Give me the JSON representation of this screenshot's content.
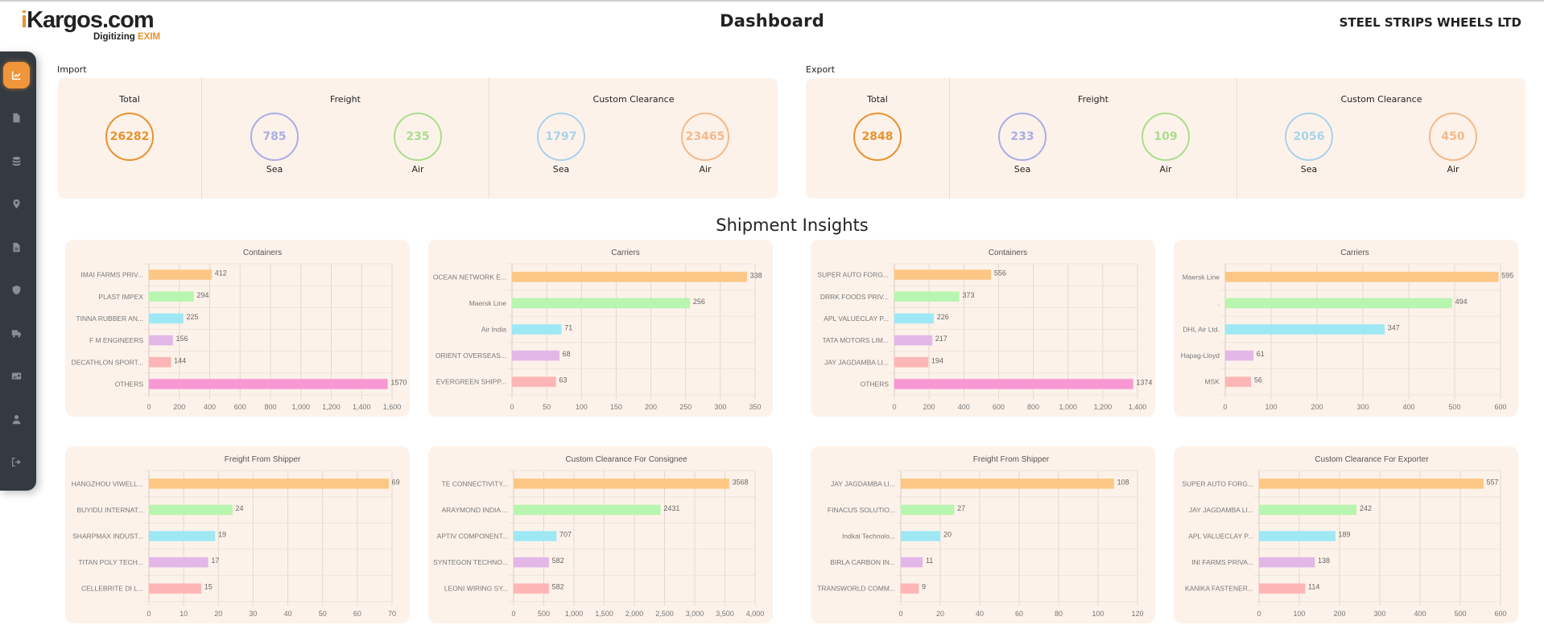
{
  "header": {
    "logo_i": "i",
    "logo_k": "K",
    "logo_rest": "argos.com",
    "logo_tagline_a": "Digitizing ",
    "logo_tagline_b": "EXIM",
    "title": "Dashboard",
    "company": "STEEL STRIPS WHEELS LTD"
  },
  "sidebar": {
    "items": [
      {
        "name": "dashboard",
        "icon": "chart-line-icon",
        "active": true
      },
      {
        "name": "documents",
        "icon": "file-icon",
        "active": false
      },
      {
        "name": "database",
        "icon": "database-icon",
        "active": false
      },
      {
        "name": "tracking",
        "icon": "map-pin-icon",
        "active": false
      },
      {
        "name": "reports",
        "icon": "file-lines-icon",
        "active": false
      },
      {
        "name": "security",
        "icon": "shield-icon",
        "active": false
      },
      {
        "name": "transport",
        "icon": "truck-icon",
        "active": false
      },
      {
        "name": "billing",
        "icon": "id-card-icon",
        "active": false
      },
      {
        "name": "profile",
        "icon": "user-icon",
        "active": false
      },
      {
        "name": "logout",
        "icon": "logout-icon",
        "active": false
      }
    ]
  },
  "colors": {
    "accent": "#f0953a",
    "total": "#e8922f",
    "freight_sea": "#a9aee6",
    "freight_air": "#a9dd8f",
    "cc_sea": "#a8d3ea",
    "cc_air": "#f2b98c",
    "card_bg": "#fdf2ea",
    "bars": [
      "#fcc784",
      "#b8f5b0",
      "#9ee8f5",
      "#e2b7e8",
      "#fdb5b5",
      "#f797d3"
    ]
  },
  "import": {
    "label": "Import",
    "total_title": "Total",
    "total": "26282",
    "freight_title": "Freight",
    "freight_sea": "785",
    "freight_air": "235",
    "cc_title": "Custom Clearance",
    "cc_sea": "1797",
    "cc_air": "23465",
    "sea_label": "Sea",
    "air_label": "Air"
  },
  "export": {
    "label": "Export",
    "total_title": "Total",
    "total": "2848",
    "freight_title": "Freight",
    "freight_sea": "233",
    "freight_air": "109",
    "cc_title": "Custom Clearance",
    "cc_sea": "2056",
    "cc_air": "450",
    "sea_label": "Sea",
    "air_label": "Air"
  },
  "insights_title": "Shipment Insights",
  "chart_data": [
    {
      "type": "bar",
      "orientation": "horizontal",
      "title": "Containers",
      "group": "import",
      "categories": [
        "IMAI FARMS PRIV...",
        "PLAST IMPEX",
        "TINNA RUBBER AN...",
        "F M ENGINEERS",
        "DECATHLON SPORT...",
        "OTHERS"
      ],
      "values": [
        412,
        294,
        225,
        156,
        144,
        1570
      ],
      "xlim": [
        0,
        1600
      ],
      "xticks": [
        0,
        200,
        400,
        600,
        800,
        1000,
        1200,
        1400,
        1600
      ],
      "xticklabels": [
        "0",
        "200",
        "400",
        "600",
        "800",
        "1,000",
        "1,200",
        "1,400",
        "1,600"
      ],
      "grid": true,
      "xlabel": "",
      "ylabel": ""
    },
    {
      "type": "bar",
      "orientation": "horizontal",
      "title": "Carriers",
      "group": "import",
      "categories": [
        "OCEAN NETWORK E...",
        "Maersk Line",
        "Air India",
        "ORIENT OVERSEAS...",
        "EVERGREEN SHIPP..."
      ],
      "values": [
        338,
        256,
        71,
        68,
        63
      ],
      "xlim": [
        0,
        350
      ],
      "xticks": [
        0,
        50,
        100,
        150,
        200,
        250,
        300,
        350
      ],
      "xticklabels": [
        "0",
        "50",
        "100",
        "150",
        "200",
        "250",
        "300",
        "350"
      ],
      "grid": true,
      "xlabel": "",
      "ylabel": ""
    },
    {
      "type": "bar",
      "orientation": "horizontal",
      "title": "Containers",
      "group": "export",
      "categories": [
        "SUPER AUTO FORG...",
        "DRRK FOODS PRIV...",
        "APL VALUECLAY P...",
        "TATA MOTORS LIM...",
        "JAY JAGDAMBA LI...",
        "OTHERS"
      ],
      "values": [
        556,
        373,
        226,
        217,
        194,
        1374
      ],
      "xlim": [
        0,
        1400
      ],
      "xticks": [
        0,
        200,
        400,
        600,
        800,
        1000,
        1200,
        1400
      ],
      "xticklabels": [
        "0",
        "200",
        "400",
        "600",
        "800",
        "1,000",
        "1,200",
        "1,400"
      ],
      "grid": true,
      "xlabel": "",
      "ylabel": ""
    },
    {
      "type": "bar",
      "orientation": "horizontal",
      "title": "Carriers",
      "group": "export",
      "categories": [
        "Maersk Line",
        ".",
        "DHL Air Ltd.",
        "Hapag-Lloyd",
        "MSK"
      ],
      "values": [
        595,
        494,
        347,
        61,
        56
      ],
      "xlim": [
        0,
        600
      ],
      "xticks": [
        0,
        100,
        200,
        300,
        400,
        500,
        600
      ],
      "xticklabels": [
        "0",
        "100",
        "200",
        "300",
        "400",
        "500",
        "600"
      ],
      "grid": true,
      "xlabel": "",
      "ylabel": ""
    },
    {
      "type": "bar",
      "orientation": "horizontal",
      "title": "Freight From Shipper",
      "group": "import",
      "categories": [
        "HANGZHOU VIWELL...",
        "BUYIDU INTERNAT...",
        "SHARPMAX INDUST...",
        "TITAN POLY TECH...",
        "CELLEBRITE DI L..."
      ],
      "values": [
        69,
        24,
        19,
        17,
        15
      ],
      "xlim": [
        0,
        70
      ],
      "xticks": [
        0,
        10,
        20,
        30,
        40,
        50,
        60,
        70
      ],
      "xticklabels": [
        "0",
        "10",
        "20",
        "30",
        "40",
        "50",
        "60",
        "70"
      ],
      "grid": true,
      "xlabel": "",
      "ylabel": ""
    },
    {
      "type": "bar",
      "orientation": "horizontal",
      "title": "Custom Clearance For Consignee",
      "group": "import",
      "categories": [
        "TE CONNECTIVITY...",
        "ARAYMOND INDIA ...",
        "APTIV COMPONENT...",
        "SYNTEGON TECHNO...",
        "LEONI WIRING SY..."
      ],
      "values": [
        3568,
        2431,
        707,
        582,
        582
      ],
      "xlim": [
        0,
        4000
      ],
      "xticks": [
        0,
        500,
        1000,
        1500,
        2000,
        2500,
        3000,
        3500,
        4000
      ],
      "xticklabels": [
        "0",
        "500",
        "1,000",
        "1,500",
        "2,000",
        "2,500",
        "3,000",
        "3,500",
        "4,000"
      ],
      "grid": true,
      "xlabel": "",
      "ylabel": ""
    },
    {
      "type": "bar",
      "orientation": "horizontal",
      "title": "Freight From Shipper",
      "group": "export",
      "categories": [
        "JAY JAGDAMBA LI...",
        "FINACUS SOLUTIO...",
        "Indkal Technolo...",
        "BIRLA CARBON IN...",
        "TRANSWORLD COMM..."
      ],
      "values": [
        108,
        27,
        20,
        11,
        9
      ],
      "xlim": [
        0,
        120
      ],
      "xticks": [
        0,
        20,
        40,
        60,
        80,
        100,
        120
      ],
      "xticklabels": [
        "0",
        "20",
        "40",
        "60",
        "80",
        "100",
        "120"
      ],
      "grid": true,
      "xlabel": "",
      "ylabel": ""
    },
    {
      "type": "bar",
      "orientation": "horizontal",
      "title": "Custom Clearance For Exporter",
      "group": "export",
      "categories": [
        "SUPER AUTO FORG...",
        "JAY JAGDAMBA LI...",
        "APL VALUECLAY P...",
        "INI FARMS PRIVA...",
        "KANIKA FASTENER..."
      ],
      "values": [
        557,
        242,
        189,
        138,
        114
      ],
      "xlim": [
        0,
        600
      ],
      "xticks": [
        0,
        100,
        200,
        300,
        400,
        500,
        600
      ],
      "xticklabels": [
        "0",
        "100",
        "200",
        "300",
        "400",
        "500",
        "600"
      ],
      "grid": true,
      "xlabel": "",
      "ylabel": ""
    }
  ]
}
